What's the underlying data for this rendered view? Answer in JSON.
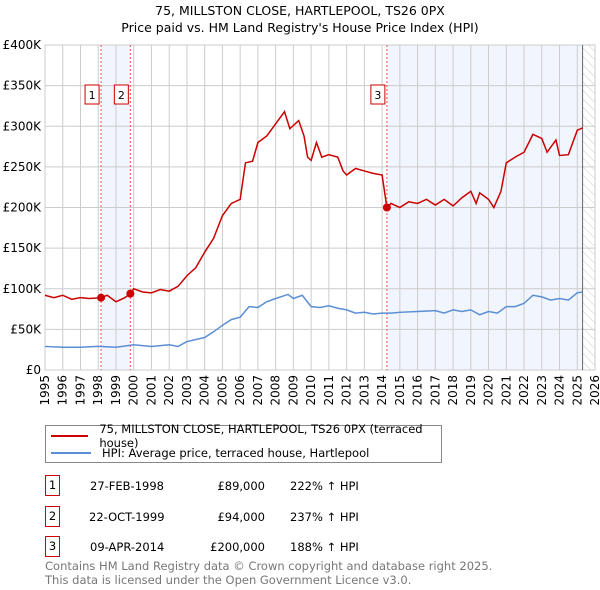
{
  "chart_data": {
    "type": "line",
    "title": "75, MILLSTON CLOSE, HARTLEPOOL, TS26 0PX",
    "subtitle": "Price paid vs. HM Land Registry's House Price Index (HPI)",
    "xlim": [
      1995,
      2026
    ],
    "ylim": [
      0,
      400000
    ],
    "x_ticks": [
      "1995",
      "1996",
      "1997",
      "1998",
      "1999",
      "2000",
      "2001",
      "2002",
      "2003",
      "2004",
      "2005",
      "2006",
      "2007",
      "2008",
      "2009",
      "2010",
      "2011",
      "2012",
      "2013",
      "2014",
      "2015",
      "2016",
      "2017",
      "2018",
      "2019",
      "2020",
      "2021",
      "2022",
      "2023",
      "2024",
      "2025",
      "2026"
    ],
    "y_ticks": [
      {
        "v": 0,
        "label": "£0"
      },
      {
        "v": 50000,
        "label": "£50K"
      },
      {
        "v": 100000,
        "label": "£100K"
      },
      {
        "v": 150000,
        "label": "£150K"
      },
      {
        "v": 200000,
        "label": "£200K"
      },
      {
        "v": 250000,
        "label": "£250K"
      },
      {
        "v": 300000,
        "label": "£300K"
      },
      {
        "v": 350000,
        "label": "£350K"
      },
      {
        "v": 400000,
        "label": "£400K"
      }
    ],
    "grid": true,
    "series": [
      {
        "name": "75, MILLSTON CLOSE, HARTLEPOOL, TS26 0PX (terraced house)",
        "color": "#cc0000",
        "x": [
          1995,
          1995.5,
          1996,
          1996.5,
          1997,
          1997.5,
          1998.16,
          1998.5,
          1999,
          1999.5,
          1999.8,
          2000,
          2000.5,
          2001,
          2001.5,
          2002,
          2002.5,
          2003,
          2003.5,
          2004,
          2004.5,
          2005,
          2005.5,
          2006,
          2006.3,
          2006.7,
          2007,
          2007.5,
          2008,
          2008.5,
          2008.8,
          2009.3,
          2009.6,
          2009.8,
          2010,
          2010.3,
          2010.6,
          2011,
          2011.5,
          2011.8,
          2012,
          2012.5,
          2013,
          2013.5,
          2014,
          2014.27,
          2014.5,
          2015,
          2015.5,
          2016,
          2016.5,
          2017,
          2017.5,
          2018,
          2018.5,
          2019,
          2019.3,
          2019.5,
          2020,
          2020.3,
          2020.7,
          2021,
          2021.5,
          2022,
          2022.5,
          2023,
          2023.3,
          2023.8,
          2024,
          2024.5,
          2025,
          2025.3
        ],
        "y": [
          92000,
          89000,
          92000,
          87000,
          89000,
          88000,
          89000,
          92000,
          84000,
          89000,
          94000,
          100000,
          96000,
          95000,
          99000,
          97000,
          103000,
          116000,
          126000,
          145000,
          162000,
          190000,
          205000,
          210000,
          255000,
          257000,
          280000,
          288000,
          303000,
          318000,
          297000,
          307000,
          288000,
          262000,
          258000,
          280000,
          262000,
          265000,
          262000,
          245000,
          240000,
          248000,
          245000,
          242000,
          240000,
          200000,
          205000,
          200000,
          207000,
          205000,
          210000,
          203000,
          210000,
          202000,
          212000,
          220000,
          205000,
          218000,
          210000,
          200000,
          220000,
          255000,
          262000,
          268000,
          290000,
          285000,
          268000,
          283000,
          264000,
          265000,
          295000,
          298000
        ]
      },
      {
        "name": "HPI: Average price, terraced house, Hartlepool",
        "color": "#5b8fd4",
        "x": [
          1995,
          1996,
          1997,
          1998,
          1999,
          2000,
          2001,
          2002,
          2002.5,
          2003,
          2004,
          2004.5,
          2005,
          2005.5,
          2006,
          2006.5,
          2007,
          2007.5,
          2008,
          2008.7,
          2009,
          2009.5,
          2010,
          2010.5,
          2011,
          2011.5,
          2012,
          2012.5,
          2013,
          2013.5,
          2014,
          2014.5,
          2015,
          2016,
          2017,
          2017.5,
          2018,
          2018.5,
          2019,
          2019.5,
          2020,
          2020.5,
          2021,
          2021.5,
          2022,
          2022.5,
          2023,
          2023.5,
          2024,
          2024.5,
          2025,
          2025.3
        ],
        "y": [
          29000,
          28000,
          28000,
          29000,
          28000,
          31000,
          29000,
          31000,
          29000,
          35000,
          40000,
          47000,
          55000,
          62000,
          65000,
          78000,
          77000,
          84000,
          88000,
          93000,
          88000,
          92000,
          78000,
          77000,
          79000,
          76000,
          74000,
          70000,
          71000,
          69000,
          70000,
          70000,
          71000,
          72000,
          73000,
          70000,
          74000,
          72000,
          74000,
          68000,
          72000,
          70000,
          78000,
          78000,
          82000,
          92000,
          90000,
          86000,
          88000,
          86000,
          95000,
          96000
        ]
      }
    ],
    "sales": [
      {
        "id": "1",
        "x": 1998.16,
        "y": 89000,
        "date": "27-FEB-1998",
        "price": "£89,000",
        "hpi": "222% ↑ HPI"
      },
      {
        "id": "2",
        "x": 1999.81,
        "y": 94000,
        "date": "22-OCT-1999",
        "price": "£94,000",
        "hpi": "237% ↑ HPI"
      },
      {
        "id": "3",
        "x": 2014.27,
        "y": 200000,
        "date": "09-APR-2014",
        "price": "£200,000",
        "hpi": "188% ↑ HPI"
      }
    ],
    "data_end": 2025.3,
    "legend_position": "below"
  },
  "footer": {
    "line1": "Contains HM Land Registry data © Crown copyright and database right 2025.",
    "line2": "This data is licensed under the Open Government Licence v3.0."
  }
}
